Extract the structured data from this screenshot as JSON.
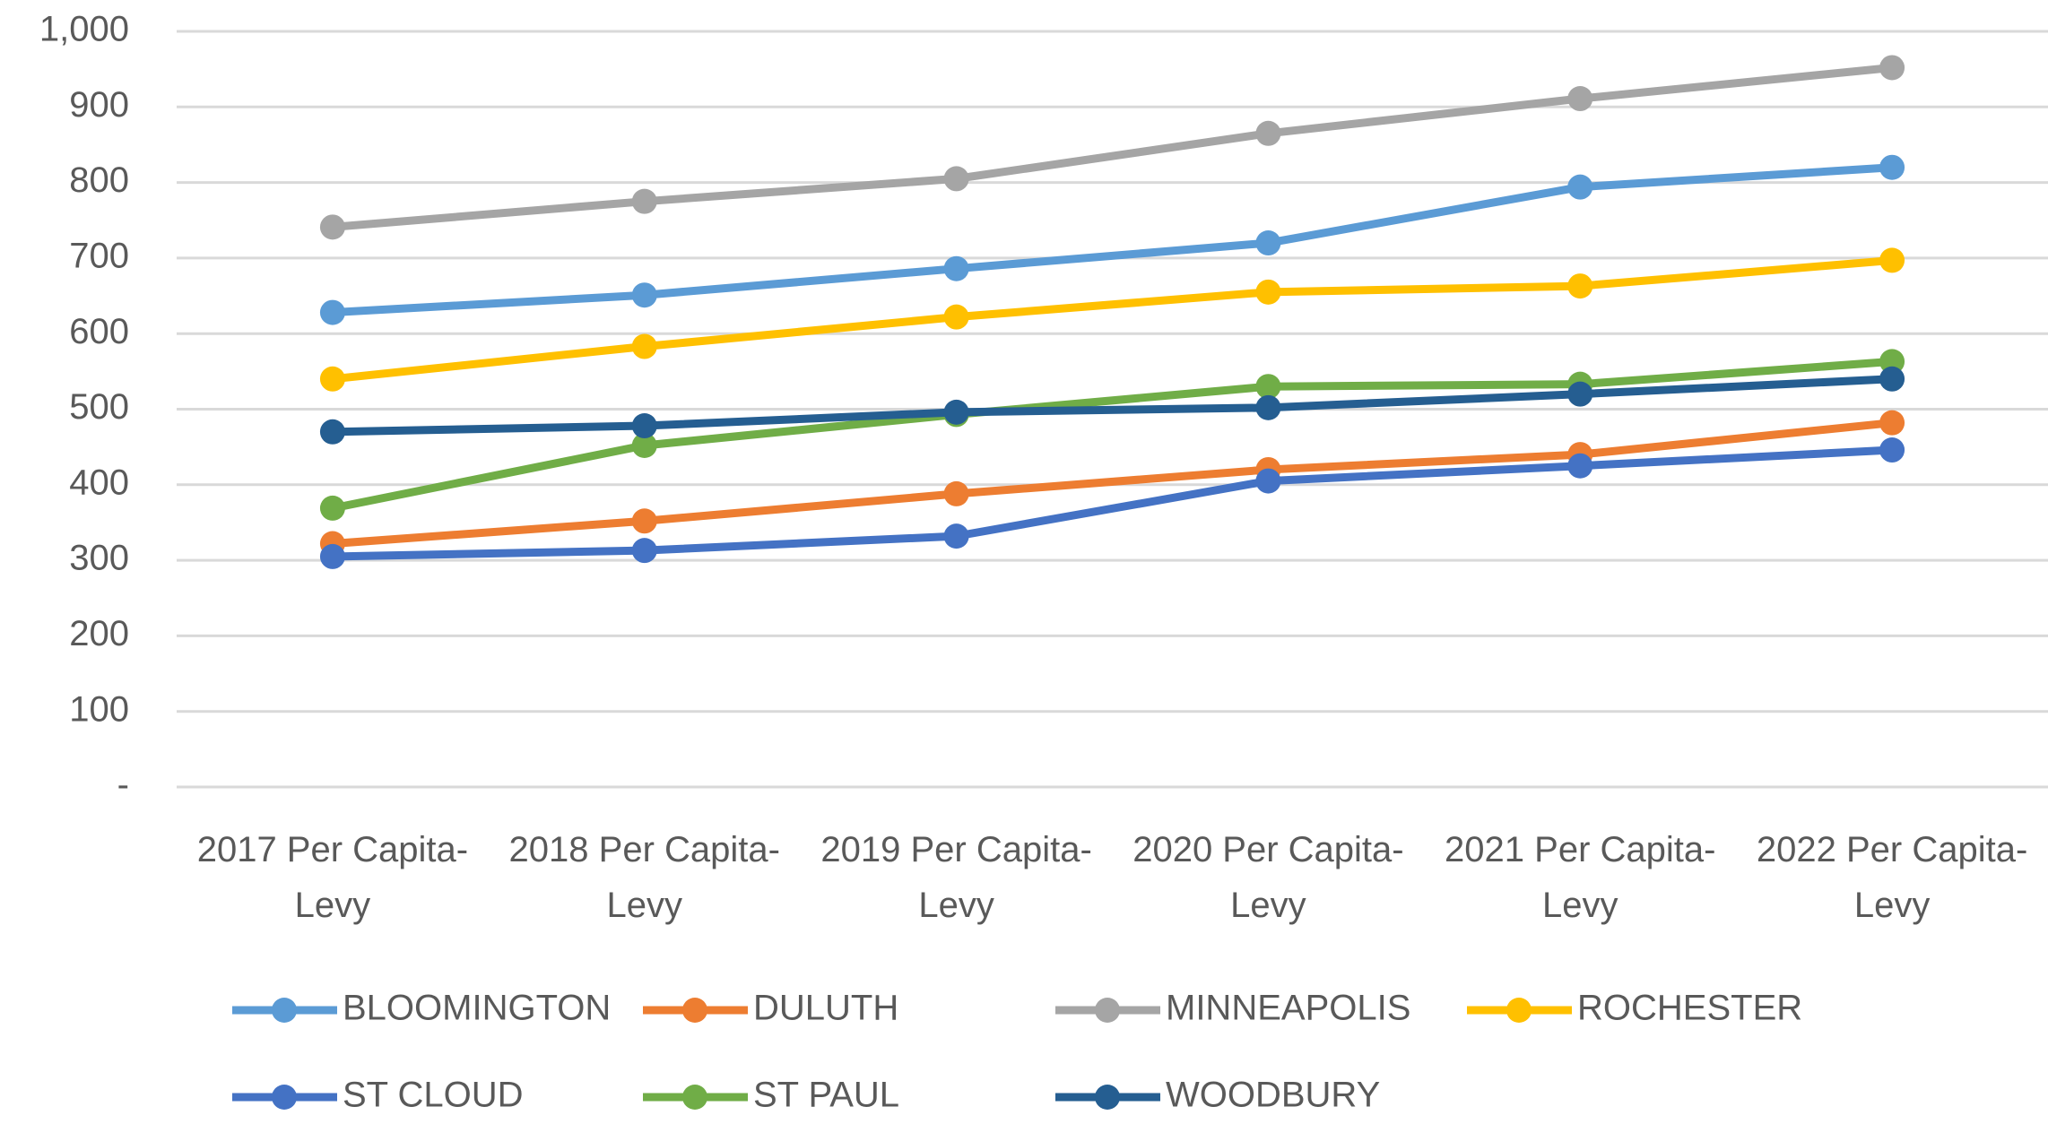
{
  "chart_data": {
    "type": "line",
    "categories": [
      "2017 Per Capita-Levy",
      "2018 Per Capita-Levy",
      "2019 Per Capita-Levy",
      "2020 Per Capita-Levy",
      "2021 Per Capita-Levy",
      "2022 Per Capita-Levy"
    ],
    "series": [
      {
        "name": "BLOOMINGTON",
        "color": "#5b9bd5",
        "values": [
          628,
          651,
          686,
          720,
          794,
          820
        ]
      },
      {
        "name": "DULUTH",
        "color": "#ed7d31",
        "values": [
          322,
          352,
          388,
          420,
          440,
          482
        ]
      },
      {
        "name": "MINNEAPOLIS",
        "color": "#a5a5a5",
        "values": [
          741,
          775,
          805,
          865,
          911,
          952
        ]
      },
      {
        "name": "ROCHESTER",
        "color": "#ffc000",
        "values": [
          540,
          583,
          622,
          655,
          663,
          697
        ]
      },
      {
        "name": "ST CLOUD",
        "color": "#4472c4",
        "values": [
          305,
          313,
          332,
          405,
          425,
          446
        ]
      },
      {
        "name": "ST PAUL",
        "color": "#70ad47",
        "values": [
          369,
          452,
          493,
          530,
          533,
          563
        ]
      },
      {
        "name": "WOODBURY",
        "color": "#255e91",
        "values": [
          470,
          478,
          496,
          502,
          520,
          540
        ]
      }
    ],
    "ylim": [
      0,
      1000
    ],
    "yticks": [
      {
        "value": 0,
        "label": "-"
      },
      100,
      200,
      300,
      400,
      500,
      600,
      700,
      800,
      900,
      {
        "value": 1000,
        "label": "1,000"
      }
    ],
    "grid": true,
    "legend": "bottom"
  }
}
